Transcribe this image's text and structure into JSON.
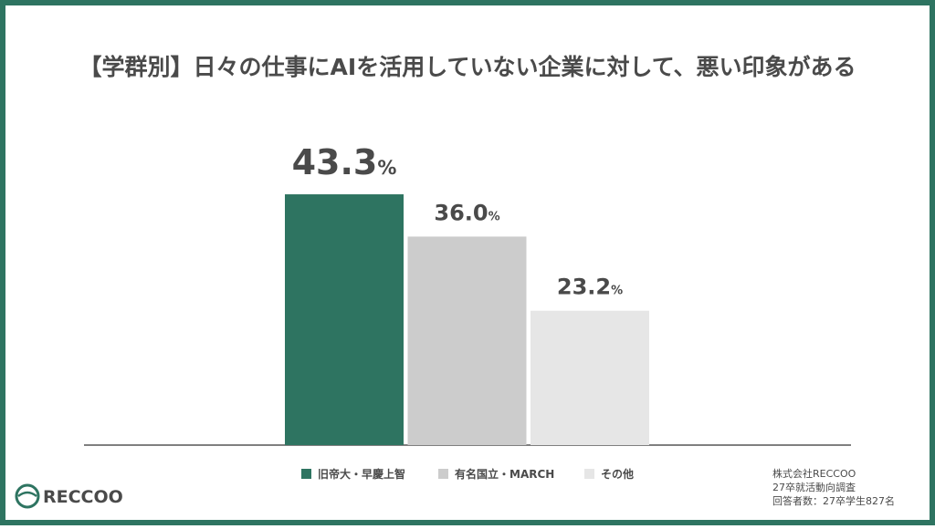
{
  "chart_data": {
    "type": "bar",
    "title": "【学群別】日々の仕事にAIを活用していない企業に対して、悪い印象がある",
    "categories": [
      null
    ],
    "series": [
      {
        "name": "旧帝大・早慶上智",
        "color": "#2e7461",
        "values": [
          43.3
        ],
        "value_labels": [
          "43.3%"
        ]
      },
      {
        "name": "有名国立・MARCH",
        "color": "#cccccc",
        "values": [
          36.0
        ],
        "value_labels": [
          "36.0%"
        ]
      },
      {
        "name": "その他",
        "color": "#e6e6e6",
        "values": [
          23.2
        ],
        "value_labels": [
          "23.2%"
        ]
      }
    ]
  },
  "footer": {
    "logo": "RECCOO",
    "source": [
      "株式会社RECCOO",
      "27卒就活動向調査",
      "回答者数：27卒学生827名"
    ]
  }
}
